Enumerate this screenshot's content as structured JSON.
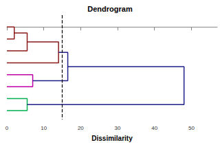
{
  "chart_data": {
    "type": "dendrogram",
    "title": "Dendrogram",
    "x_label": "Dissimilarity",
    "xlim": [
      0,
      57
    ],
    "xticks": [
      0,
      10,
      20,
      30,
      40,
      50
    ],
    "grid": false,
    "tick_labels": "x",
    "cut": 15,
    "cut_line_style": "dashed",
    "merges": [
      {
        "left": 0,
        "right": 1,
        "height": 2,
        "color": "#8b1a1a"
      },
      {
        "left": 8,
        "right": 2,
        "height": 5.5,
        "color": "#8b1a1a"
      },
      {
        "left": 9,
        "right": 3,
        "height": 14,
        "color": "#8b1a1a"
      },
      {
        "left": 4,
        "right": 5,
        "height": 7,
        "color": "#c000a8"
      },
      {
        "left": 10,
        "right": 11,
        "height": 16.5,
        "color": "#1f1f8c"
      },
      {
        "left": 6,
        "right": 7,
        "height": 5.5,
        "color": "#00b050"
      },
      {
        "left": 12,
        "right": 13,
        "height": 48,
        "color": "#1f1f8c"
      }
    ]
  }
}
